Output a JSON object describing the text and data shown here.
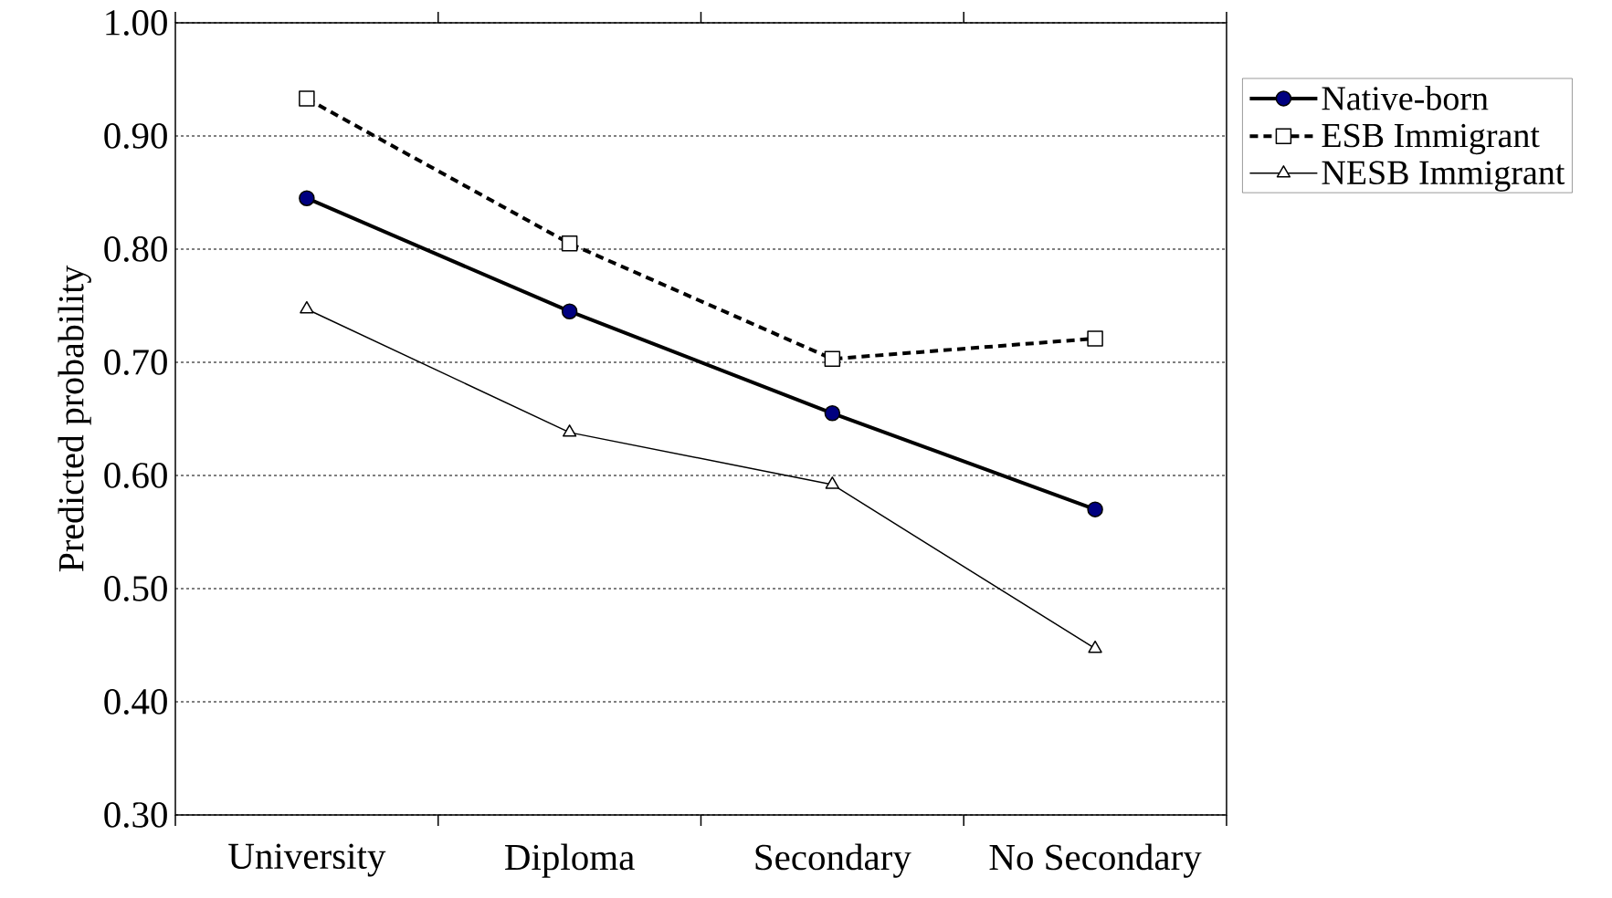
{
  "chart_data": {
    "type": "line",
    "ylabel": "Predicted probability",
    "categories": [
      "University",
      "Diploma",
      "Secondary",
      "No Secondary"
    ],
    "series": [
      {
        "name": "Native-born",
        "color": "#000080",
        "values": [
          0.845,
          0.745,
          0.655,
          0.57
        ],
        "marker": "circle",
        "line_style": "solid"
      },
      {
        "name": "ESB Immigrant",
        "color": "#ffffff",
        "values": [
          0.933,
          0.805,
          0.703,
          0.721
        ],
        "marker": "square",
        "line_style": "dashed"
      },
      {
        "name": "NESB Immigrant",
        "color": "#ffffff",
        "values": [
          0.747,
          0.638,
          0.592,
          0.447
        ],
        "marker": "triangle",
        "line_style": "solid"
      }
    ],
    "ylim": [
      0.3,
      1.0
    ],
    "yticks": [
      {
        "value": 0.3,
        "label": "0.30"
      },
      {
        "value": 0.4,
        "label": "0.40"
      },
      {
        "value": 0.5,
        "label": "0.50"
      },
      {
        "value": 0.6,
        "label": "0.60"
      },
      {
        "value": 0.7,
        "label": "0.70"
      },
      {
        "value": 0.8,
        "label": "0.80"
      },
      {
        "value": 0.9,
        "label": "0.90"
      },
      {
        "value": 1.0,
        "label": "1.00"
      }
    ],
    "grid": "y",
    "legend": "top right"
  }
}
